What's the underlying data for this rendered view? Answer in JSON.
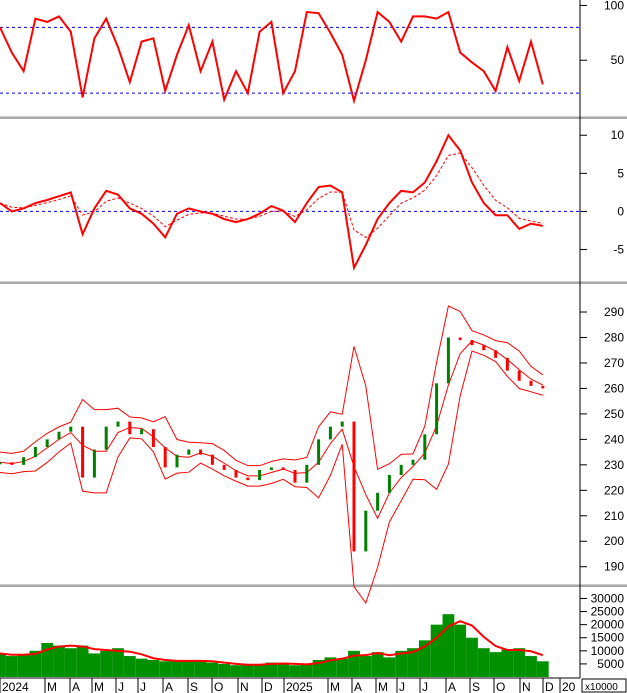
{
  "chart_data": {
    "type": "stock-multi-panel",
    "dates": [
      "2024-01-01",
      "2024-01-15",
      "2024-02-01",
      "2024-02-15",
      "2024-03-01",
      "2024-03-15",
      "2024-04-01",
      "2024-04-15",
      "2024-05-01",
      "2024-05-15",
      "2024-06-01",
      "2024-06-15",
      "2024-07-01",
      "2024-07-15",
      "2024-08-01",
      "2024-08-15",
      "2024-09-01",
      "2024-09-15",
      "2024-10-01",
      "2024-10-15",
      "2024-11-01",
      "2024-11-15",
      "2024-12-01",
      "2024-12-15",
      "2025-01-01",
      "2025-01-15",
      "2025-02-01",
      "2025-02-15",
      "2025-03-01",
      "2025-03-15",
      "2025-04-01",
      "2025-04-15",
      "2025-05-01",
      "2025-05-15",
      "2025-06-01",
      "2025-06-15",
      "2025-07-01",
      "2025-07-15",
      "2025-08-01",
      "2025-08-15",
      "2025-09-01",
      "2025-09-15",
      "2025-10-01",
      "2025-10-15",
      "2025-11-01",
      "2025-11-15",
      "2025-12-01"
    ],
    "x_tick_labels": [
      "2024",
      "M",
      "A",
      "M",
      "J",
      "J",
      "A",
      "S",
      "O",
      "N",
      "D",
      "2025",
      "M",
      "A",
      "M",
      "J",
      "J",
      "A",
      "S",
      "O",
      "N",
      "D",
      "20"
    ],
    "panels": {
      "rsi": {
        "y_ticks": [
          "100",
          "50"
        ],
        "ylim": [
          0,
          105
        ],
        "levels": [
          80,
          20
        ],
        "values": [
          80,
          57,
          40,
          88,
          85,
          90,
          76,
          16,
          70,
          88,
          62,
          30,
          67,
          70,
          22,
          55,
          82,
          40,
          67,
          14,
          40,
          20,
          76,
          85,
          20,
          40,
          94,
          93,
          75,
          55,
          13,
          50,
          94,
          85,
          67,
          90,
          90,
          88,
          94,
          57,
          48,
          40,
          22,
          62,
          31,
          67,
          28
        ]
      },
      "macd": {
        "y_ticks": [
          "10",
          "5",
          "0",
          "-5"
        ],
        "ylim": [
          -9,
          12
        ],
        "levels": [
          0
        ],
        "values": [
          1.1,
          0,
          0.4,
          1.1,
          1.5,
          2,
          2.5,
          -3,
          0.4,
          2.7,
          2.2,
          0.4,
          -0.3,
          -1.6,
          -3.4,
          -0.3,
          0.4,
          0,
          -0.3,
          -1,
          -1.4,
          -1,
          -0.3,
          0.7,
          0.1,
          -1.4,
          1.1,
          3.2,
          3.4,
          2.5,
          -7.4,
          -4.4,
          -1,
          1.1,
          2.7,
          2.5,
          3.8,
          6.6,
          10,
          8,
          3.8,
          1.1,
          -0.5,
          -0.5,
          -2.3,
          -1.6,
          -1.9
        ]
      },
      "price": {
        "y_ticks": [
          "290",
          "280",
          "270",
          "260",
          "250",
          "240",
          "230",
          "220",
          "210",
          "200",
          "190"
        ],
        "ylim": [
          184,
          301
        ],
        "close": [
          231,
          230,
          233,
          237,
          240,
          243,
          245,
          225,
          236,
          245,
          247,
          242,
          244,
          237,
          229,
          234,
          236,
          234,
          230,
          228,
          225,
          224,
          228,
          229,
          228,
          223,
          230,
          240,
          245,
          247,
          196,
          212,
          219,
          226,
          230,
          232,
          242,
          262,
          280,
          279,
          277,
          275,
          272,
          267,
          263,
          261,
          260
        ]
      },
      "volume": {
        "y_ticks": [
          "30000",
          "25000",
          "20000",
          "15000",
          "10000",
          "5000"
        ],
        "unit_label": "x10000",
        "ylim": [
          0,
          34000
        ],
        "values": [
          9000,
          8000,
          8500,
          10000,
          13000,
          12000,
          11000,
          12000,
          9000,
          10000,
          11000,
          8000,
          7000,
          6500,
          6000,
          6000,
          6500,
          6000,
          5500,
          5000,
          4500,
          4500,
          5000,
          5500,
          5000,
          4500,
          5000,
          6500,
          7500,
          7000,
          10000,
          8000,
          9500,
          7500,
          10000,
          11000,
          14000,
          20000,
          24000,
          20000,
          15000,
          11000,
          9500,
          10500,
          11000,
          8000,
          6000
        ]
      }
    },
    "grid": false,
    "colors": {
      "up": "#008000",
      "down": "#ff0000",
      "line": "#ff0000",
      "level": "#0000ff",
      "volume": "#009000"
    }
  }
}
